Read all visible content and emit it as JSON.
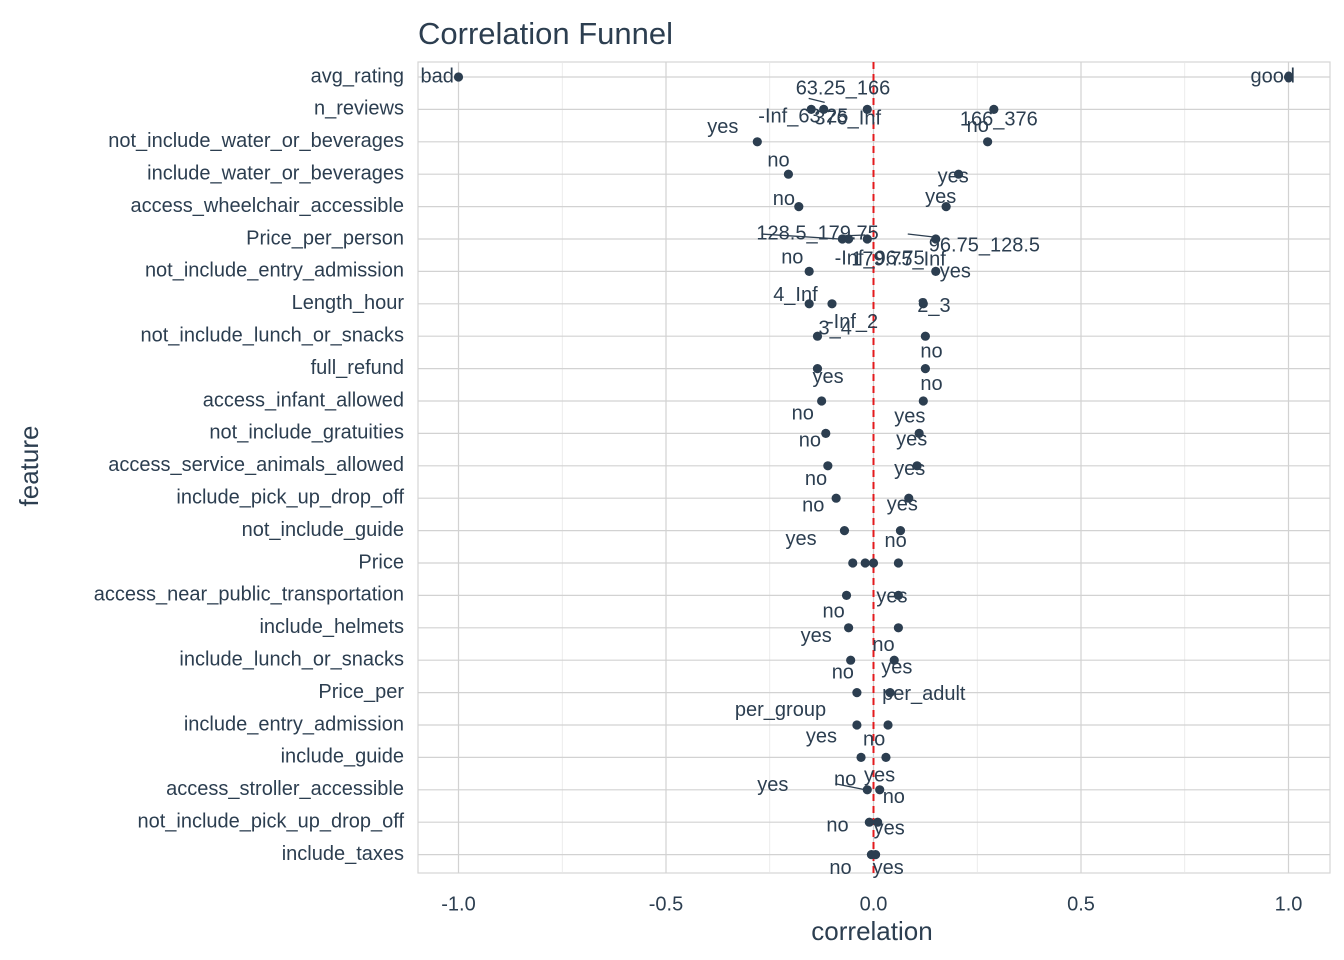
{
  "chart_data": {
    "type": "scatter",
    "title": "Correlation Funnel",
    "xlabel": "correlation",
    "ylabel": "feature",
    "xlim": [
      -1.1,
      1.1
    ],
    "x_ticks": [
      -1.0,
      -0.5,
      0.0,
      0.5,
      1.0
    ],
    "x_tick_labels": [
      "-1.0",
      "-0.5",
      "0.0",
      "0.5",
      "1.0"
    ],
    "grid": true,
    "reference_line": {
      "x": 0,
      "color": "#e31a1c",
      "style": "dashed"
    },
    "point_color": "#2c3e50",
    "text_color": "#2c3e50",
    "features": [
      "avg_rating",
      "n_reviews",
      "not_include_water_or_beverages",
      "include_water_or_beverages",
      "access_wheelchair_accessible",
      "Price_per_person",
      "not_include_entry_admission",
      "Length_hour",
      "not_include_lunch_or_snacks",
      "full_refund",
      "access_infant_allowed",
      "not_include_gratuities",
      "access_service_animals_allowed",
      "include_pick_up_drop_off",
      "not_include_guide",
      "Price",
      "access_near_public_transportation",
      "include_helmets",
      "include_lunch_or_snacks",
      "Price_per",
      "include_entry_admission",
      "include_guide",
      "access_stroller_accessible",
      "not_include_pick_up_drop_off",
      "include_taxes"
    ],
    "points": [
      {
        "feature": "avg_rating",
        "bin": "bad",
        "x": -1.0
      },
      {
        "feature": "avg_rating",
        "bin": "good",
        "x": 1.0
      },
      {
        "feature": "n_reviews",
        "bin": "-Inf_63.25",
        "x": -0.15
      },
      {
        "feature": "n_reviews",
        "bin": "63.25_166",
        "x": -0.12
      },
      {
        "feature": "n_reviews",
        "bin": "376_Inf",
        "x": -0.015
      },
      {
        "feature": "n_reviews",
        "bin": "166_376",
        "x": 0.29
      },
      {
        "feature": "not_include_water_or_beverages",
        "bin": "yes",
        "x": -0.28
      },
      {
        "feature": "not_include_water_or_beverages",
        "bin": "no",
        "x": 0.275
      },
      {
        "feature": "include_water_or_beverages",
        "bin": "no",
        "x": -0.205
      },
      {
        "feature": "include_water_or_beverages",
        "bin": "yes",
        "x": 0.205
      },
      {
        "feature": "access_wheelchair_accessible",
        "bin": "no",
        "x": -0.18
      },
      {
        "feature": "access_wheelchair_accessible",
        "bin": "yes",
        "x": 0.175
      },
      {
        "feature": "Price_per_person",
        "bin": "128.5_179.75",
        "x": -0.075
      },
      {
        "feature": "Price_per_person",
        "bin": "-Inf_96.75",
        "x": -0.06
      },
      {
        "feature": "Price_per_person",
        "bin": "179.75_Inf",
        "x": -0.015
      },
      {
        "feature": "Price_per_person",
        "bin": "96.75_128.5",
        "x": 0.15
      },
      {
        "feature": "not_include_entry_admission",
        "bin": "no",
        "x": -0.155
      },
      {
        "feature": "not_include_entry_admission",
        "bin": "yes",
        "x": 0.15
      },
      {
        "feature": "Length_hour",
        "bin": "4_Inf",
        "x": -0.155
      },
      {
        "feature": "Length_hour",
        "bin": "-Inf_2",
        "x": -0.1
      },
      {
        "feature": "Length_hour",
        "bin": "2_3",
        "x": 0.12
      },
      {
        "feature": "not_include_lunch_or_snacks",
        "bin": "3_4",
        "x": -0.135
      },
      {
        "feature": "not_include_lunch_or_snacks",
        "bin": "no",
        "x": 0.125
      },
      {
        "feature": "full_refund",
        "bin": "yes",
        "x": -0.135
      },
      {
        "feature": "full_refund",
        "bin": "no",
        "x": 0.125
      },
      {
        "feature": "access_infant_allowed",
        "bin": "no",
        "x": -0.125
      },
      {
        "feature": "access_infant_allowed",
        "bin": "yes",
        "x": 0.12
      },
      {
        "feature": "not_include_gratuities",
        "bin": "no",
        "x": -0.115
      },
      {
        "feature": "not_include_gratuities",
        "bin": "yes",
        "x": 0.11
      },
      {
        "feature": "access_service_animals_allowed",
        "bin": "no",
        "x": -0.11
      },
      {
        "feature": "access_service_animals_allowed",
        "bin": "yes",
        "x": 0.105
      },
      {
        "feature": "include_pick_up_drop_off",
        "bin": "no",
        "x": -0.09
      },
      {
        "feature": "include_pick_up_drop_off",
        "bin": "yes",
        "x": 0.085
      },
      {
        "feature": "not_include_guide",
        "bin": "yes",
        "x": -0.07
      },
      {
        "feature": "not_include_guide",
        "bin": "no",
        "x": 0.065
      },
      {
        "feature": "Price",
        "bin": "",
        "x": -0.05
      },
      {
        "feature": "Price",
        "bin": "",
        "x": -0.02
      },
      {
        "feature": "Price",
        "bin": "",
        "x": 0.0
      },
      {
        "feature": "Price",
        "bin": "",
        "x": 0.06
      },
      {
        "feature": "access_near_public_transportation",
        "bin": "no",
        "x": -0.065
      },
      {
        "feature": "access_near_public_transportation",
        "bin": "yes",
        "x": 0.06
      },
      {
        "feature": "include_helmets",
        "bin": "yes",
        "x": -0.06
      },
      {
        "feature": "include_helmets",
        "bin": "no",
        "x": 0.06
      },
      {
        "feature": "include_lunch_or_snacks",
        "bin": "no",
        "x": -0.055
      },
      {
        "feature": "include_lunch_or_snacks",
        "bin": "yes",
        "x": 0.05
      },
      {
        "feature": "Price_per",
        "bin": "per_group",
        "x": -0.04
      },
      {
        "feature": "Price_per",
        "bin": "per_adult",
        "x": 0.04
      },
      {
        "feature": "include_entry_admission",
        "bin": "yes",
        "x": -0.04
      },
      {
        "feature": "include_entry_admission",
        "bin": "no",
        "x": 0.035
      },
      {
        "feature": "include_guide",
        "bin": "no",
        "x": -0.03
      },
      {
        "feature": "include_guide",
        "bin": "yes",
        "x": 0.03
      },
      {
        "feature": "access_stroller_accessible",
        "bin": "yes",
        "x": -0.015
      },
      {
        "feature": "access_stroller_accessible",
        "bin": "no",
        "x": 0.015
      },
      {
        "feature": "not_include_pick_up_drop_off",
        "bin": "no",
        "x": -0.01
      },
      {
        "feature": "not_include_pick_up_drop_off",
        "bin": "yes",
        "x": 0.01
      },
      {
        "feature": "include_taxes",
        "bin": "no",
        "x": -0.005
      },
      {
        "feature": "include_taxes",
        "bin": "yes",
        "x": 0.005
      }
    ]
  }
}
